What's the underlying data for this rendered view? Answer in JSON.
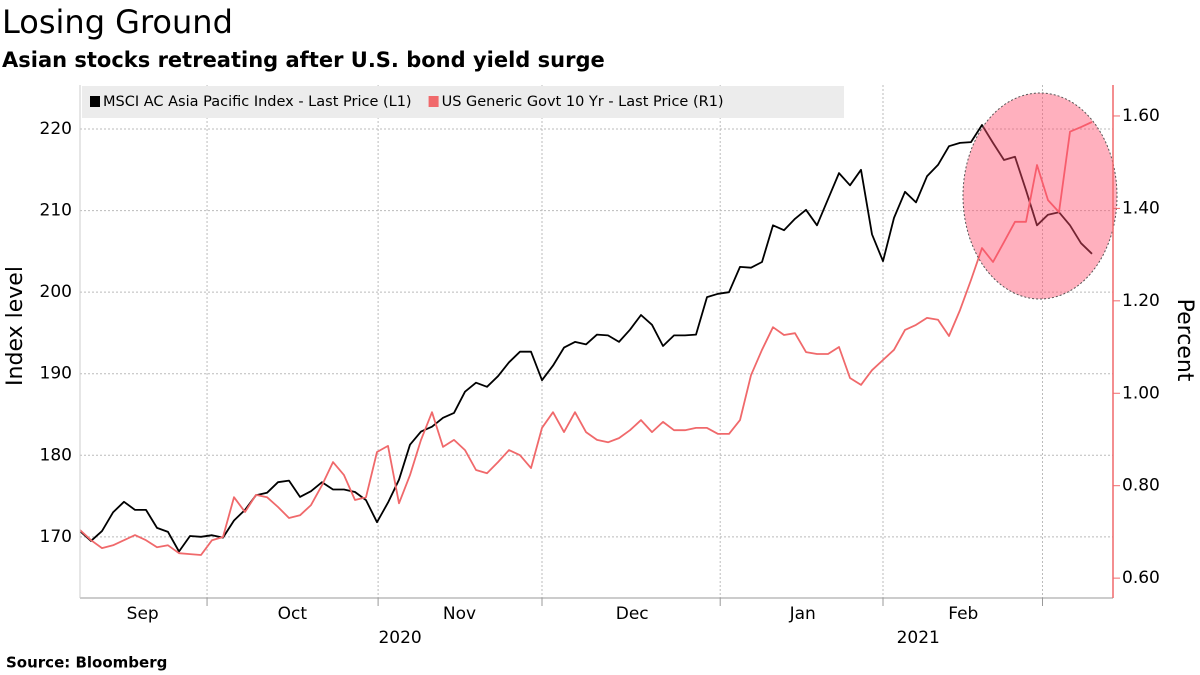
{
  "chart_data": {
    "type": "line",
    "title": "Losing Ground",
    "subtitle": "Asian stocks retreating after U.S. bond yield surge",
    "source": "Source: Bloomberg",
    "ylabel": "Index level",
    "y2label": "Percent",
    "legend": "upper left",
    "grid": true,
    "xlim": [
      0,
      92
    ],
    "xticks": [
      11.55,
      27.1,
      42,
      58.2,
      73,
      87.5
    ],
    "xlabels": [
      {
        "value": 5.7,
        "label": "Sep"
      },
      {
        "value": 19.3,
        "label": "Oct"
      },
      {
        "value": 34.5,
        "label": "Nov"
      },
      {
        "value": 50.2,
        "label": "Dec"
      },
      {
        "value": 65.7,
        "label": "Jan"
      },
      {
        "value": 80.3,
        "label": "Feb"
      }
    ],
    "year_labels": [
      {
        "value": 29.1,
        "label": "2020"
      },
      {
        "value": 76.2,
        "label": "2021"
      }
    ],
    "ylim": [
      162.5,
      225.4
    ],
    "yticks": [
      170,
      180,
      190,
      200,
      210,
      220
    ],
    "y2lim": [
      0.557,
      1.667
    ],
    "y2ticks": [
      {
        "value": 0.6,
        "label": "0.60"
      },
      {
        "value": 0.8,
        "label": "0.80"
      },
      {
        "value": 1.0,
        "label": "1.00"
      },
      {
        "value": 1.2,
        "label": "1.20"
      },
      {
        "value": 1.4,
        "label": "1.40"
      },
      {
        "value": 1.6,
        "label": "1.60"
      }
    ],
    "y2color": "#f0696b",
    "series": [
      {
        "name": "MSCI AC Asia Pacific Index - Last Price (L1)",
        "color": "#000000",
        "axis": "y",
        "values": [
          170.7,
          169.5,
          170.7,
          173.0,
          174.3,
          173.3,
          173.3,
          171.1,
          170.6,
          168.2,
          170.1,
          170.0,
          170.2,
          169.9,
          172.0,
          173.3,
          175.1,
          175.4,
          176.7,
          176.9,
          174.9,
          175.6,
          176.7,
          175.8,
          175.8,
          175.5,
          174.5,
          171.8,
          174.2,
          177.0,
          181.3,
          182.9,
          183.5,
          184.6,
          185.2,
          187.8,
          188.9,
          188.4,
          189.7,
          191.4,
          192.7,
          192.7,
          189.2,
          191.0,
          193.2,
          193.9,
          193.6,
          194.8,
          194.7,
          193.9,
          195.4,
          197.2,
          196.0,
          193.4,
          194.7,
          194.7,
          194.8,
          199.4,
          199.8,
          200.0,
          203.1,
          203.0,
          203.7,
          208.2,
          207.6,
          209.0,
          210.1,
          208.2,
          211.4,
          214.6,
          213.1,
          215.0,
          207.1,
          203.8,
          209.1,
          212.3,
          211.0,
          214.2,
          215.6,
          217.9,
          218.3,
          218.4,
          220.5,
          218.3,
          216.2,
          216.6,
          212.5,
          208.2,
          209.5,
          209.8,
          208.2,
          206.0,
          204.7
        ]
      },
      {
        "name": "US Generic Govt 10 Yr - Last Price (R1)",
        "color": "#f0696b",
        "axis": "y2",
        "values": [
          0.704,
          0.682,
          0.665,
          0.671,
          0.682,
          0.693,
          0.682,
          0.667,
          0.671,
          0.654,
          0.652,
          0.65,
          0.682,
          0.689,
          0.775,
          0.743,
          0.78,
          0.775,
          0.754,
          0.73,
          0.736,
          0.758,
          0.801,
          0.851,
          0.823,
          0.769,
          0.775,
          0.873,
          0.886,
          0.762,
          0.823,
          0.899,
          0.959,
          0.884,
          0.899,
          0.877,
          0.834,
          0.827,
          0.851,
          0.877,
          0.866,
          0.838,
          0.925,
          0.959,
          0.916,
          0.959,
          0.916,
          0.899,
          0.894,
          0.903,
          0.92,
          0.942,
          0.916,
          0.938,
          0.92,
          0.92,
          0.925,
          0.925,
          0.912,
          0.912,
          0.942,
          1.039,
          1.094,
          1.143,
          1.126,
          1.13,
          1.089,
          1.085,
          1.085,
          1.1,
          1.033,
          1.018,
          1.05,
          1.072,
          1.094,
          1.137,
          1.148,
          1.163,
          1.159,
          1.124,
          1.18,
          1.245,
          1.314,
          1.284,
          1.327,
          1.371,
          1.371,
          1.494,
          1.418,
          1.392,
          1.566,
          1.576,
          1.587
        ]
      }
    ]
  }
}
